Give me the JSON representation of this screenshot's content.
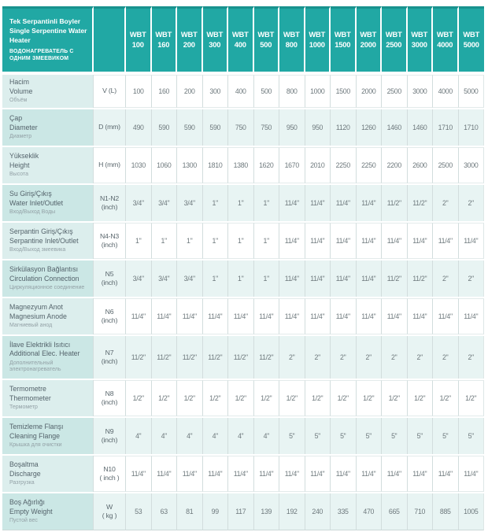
{
  "header": {
    "title_tr": "Tek Serpantinli Boyler",
    "title_en": "Single Serpentine Water Heater",
    "title_ru": "ВОДОНАГРЕВАТЕЛЬ С ОДНИМ ЗМЕЕВИКОМ",
    "model_prefix": "WBT",
    "models": [
      "100",
      "160",
      "200",
      "300",
      "400",
      "500",
      "800",
      "1000",
      "1500",
      "2000",
      "2500",
      "3000",
      "4000",
      "5000"
    ]
  },
  "colors": {
    "header_teal": "#21a8a4",
    "header_top_edge": "#18928e",
    "label_light": "#dceeed",
    "label_dark": "#cbe7e5",
    "row_tint": "#e8f4f3"
  },
  "rows": [
    {
      "tr": "Hacim",
      "en": "Volume",
      "ru": "Объём",
      "unit": "V (L)",
      "values": [
        "100",
        "160",
        "200",
        "300",
        "400",
        "500",
        "800",
        "1000",
        "1500",
        "2000",
        "2500",
        "3000",
        "4000",
        "5000"
      ]
    },
    {
      "tr": "Çap",
      "en": "Diameter",
      "ru": "Диаметр",
      "unit": "D (mm)",
      "values": [
        "490",
        "590",
        "590",
        "590",
        "750",
        "750",
        "950",
        "950",
        "1120",
        "1260",
        "1460",
        "1460",
        "1710",
        "1710"
      ]
    },
    {
      "tr": "Yükseklik",
      "en": "Height",
      "ru": "Высота",
      "unit": "H (mm)",
      "values": [
        "1030",
        "1060",
        "1300",
        "1810",
        "1380",
        "1620",
        "1670",
        "2010",
        "2250",
        "2250",
        "2200",
        "2600",
        "2500",
        "3000"
      ]
    },
    {
      "tr": "Su Giriş/Çıkış",
      "en": "Water Inlet/Outlet",
      "ru": "Вход/Выход Воды",
      "unit": "N1-N2\n(inch)",
      "values": [
        "3/4\"",
        "3/4\"",
        "3/4\"",
        "1\"",
        "1\"",
        "1\"",
        "11/4\"",
        "11/4\"",
        "11/4\"",
        "11/4\"",
        "11/2\"",
        "11/2\"",
        "2\"",
        "2\""
      ]
    },
    {
      "tr": "Serpantin Giriş/Çıkış",
      "en": "Serpantine Inlet/Outlet",
      "ru": "Вход/Выход змеевика",
      "unit": "N4-N3\n(inch)",
      "values": [
        "1\"",
        "1\"",
        "1\"",
        "1\"",
        "1\"",
        "1\"",
        "11/4\"",
        "11/4\"",
        "11/4\"",
        "11/4\"",
        "11/4\"",
        "11/4\"",
        "11/4\"",
        "11/4\""
      ]
    },
    {
      "tr": "Sirkülasyon Bağlantısı",
      "en": "Circulation Connection",
      "ru": "Циркуляционное соединение",
      "unit": "N5\n(inch)",
      "values": [
        "3/4\"",
        "3/4\"",
        "3/4\"",
        "1\"",
        "1\"",
        "1\"",
        "11/4\"",
        "11/4\"",
        "11/4\"",
        "11/4\"",
        "11/2\"",
        "11/2\"",
        "2\"",
        "2\""
      ]
    },
    {
      "tr": "Magnezyum Anot",
      "en": "Magnesium Anode",
      "ru": "Магниевый анод",
      "unit": "N6\n(inch)",
      "values": [
        "11/4\"",
        "11/4\"",
        "11/4\"",
        "11/4\"",
        "11/4\"",
        "11/4\"",
        "11/4\"",
        "11/4\"",
        "11/4\"",
        "11/4\"",
        "11/4\"",
        "11/4\"",
        "11/4\"",
        "11/4\""
      ]
    },
    {
      "tr": "İlave Elektrikli Isıtıcı",
      "en": "Additional Elec. Heater",
      "ru": "Дополнительный электронагреватель",
      "unit": "N7\n(inch)",
      "values": [
        "11/2\"",
        "11/2\"",
        "11/2\"",
        "11/2\"",
        "11/2\"",
        "11/2\"",
        "2\"",
        "2\"",
        "2\"",
        "2\"",
        "2\"",
        "2\"",
        "2\"",
        "2\""
      ]
    },
    {
      "tr": "Termometre",
      "en": "Thermometer",
      "ru": "Термометр",
      "unit": "N8\n(inch)",
      "values": [
        "1/2\"",
        "1/2\"",
        "1/2\"",
        "1/2\"",
        "1/2\"",
        "1/2\"",
        "1/2\"",
        "1/2\"",
        "1/2\"",
        "1/2\"",
        "1/2\"",
        "1/2\"",
        "1/2\"",
        "1/2\""
      ]
    },
    {
      "tr": "Temizleme Flanşı",
      "en": "Cleaning Flange",
      "ru": "Крышка для очистки",
      "unit": "N9\n(inch)",
      "values": [
        "4''",
        "4''",
        "4''",
        "4''",
        "4''",
        "4''",
        "5''",
        "5''",
        "5''",
        "5''",
        "5''",
        "5''",
        "5''",
        "5''"
      ]
    },
    {
      "tr": "Boşaltma",
      "en": "Discharge",
      "ru": "Разгрузка",
      "unit": "N10\n( inch )",
      "values": [
        "11/4\"",
        "11/4\"",
        "11/4\"",
        "11/4\"",
        "11/4\"",
        "11/4\"",
        "11/4\"",
        "11/4\"",
        "11/4\"",
        "11/4\"",
        "11/4\"",
        "11/4\"",
        "11/4\"",
        "11/4\""
      ]
    },
    {
      "tr": "Boş Ağırlığı",
      "en": "Empty Weight",
      "ru": "Пустой вес",
      "unit": "W\n( kg )",
      "values": [
        "53",
        "63",
        "81",
        "99",
        "117",
        "139",
        "192",
        "240",
        "335",
        "470",
        "665",
        "710",
        "885",
        "1005"
      ]
    }
  ]
}
